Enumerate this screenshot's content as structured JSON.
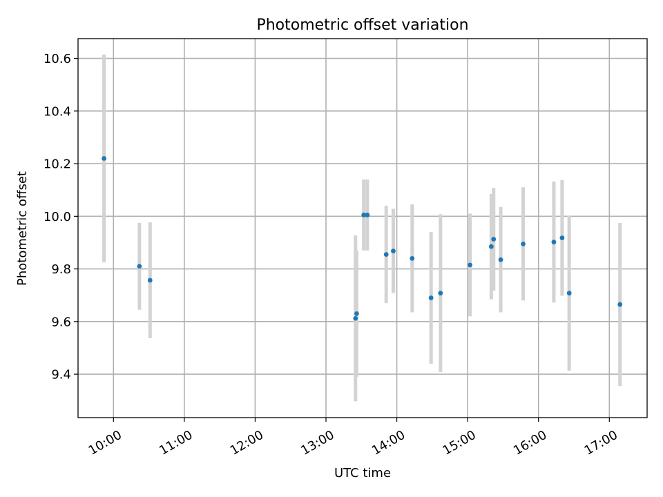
{
  "chart_data": {
    "type": "scatter",
    "title": "Photometric offset variation",
    "xlabel": "UTC time",
    "ylabel": "Photometric offset",
    "x_axis_type": "time",
    "xlim": [
      "09:30",
      "17:32"
    ],
    "ylim": [
      9.235,
      10.675
    ],
    "x_ticks": [
      "10:00",
      "11:00",
      "12:00",
      "13:00",
      "14:00",
      "15:00",
      "16:00",
      "17:00"
    ],
    "y_ticks": [
      9.4,
      9.6,
      9.8,
      10.0,
      10.2,
      10.4,
      10.6
    ],
    "y_tick_labels": [
      "9.4",
      "9.6",
      "9.8",
      "10.0",
      "10.2",
      "10.4",
      "10.6"
    ],
    "grid": true,
    "legend": "none",
    "colors": {
      "point": "#1f77b4",
      "errorbar": "#d3d3d3"
    },
    "points": [
      {
        "x": "09:52",
        "y": 10.22,
        "err": 0.395
      },
      {
        "x": "10:22",
        "y": 9.81,
        "err": 0.165
      },
      {
        "x": "10:31",
        "y": 9.757,
        "err": 0.22
      },
      {
        "x": "13:25",
        "y": 9.612,
        "err": 0.315
      },
      {
        "x": "13:26",
        "y": 9.63,
        "err": 0.24
      },
      {
        "x": "13:32",
        "y": 10.005,
        "err": 0.135
      },
      {
        "x": "13:35",
        "y": 10.005,
        "err": 0.135
      },
      {
        "x": "13:51",
        "y": 9.855,
        "err": 0.185
      },
      {
        "x": "13:57",
        "y": 9.868,
        "err": 0.16
      },
      {
        "x": "14:13",
        "y": 9.84,
        "err": 0.205
      },
      {
        "x": "14:29",
        "y": 9.69,
        "err": 0.25
      },
      {
        "x": "14:37",
        "y": 9.708,
        "err": 0.3
      },
      {
        "x": "15:02",
        "y": 9.815,
        "err": 0.195
      },
      {
        "x": "15:20",
        "y": 9.885,
        "err": 0.2
      },
      {
        "x": "15:22",
        "y": 9.913,
        "err": 0.195
      },
      {
        "x": "15:28",
        "y": 9.835,
        "err": 0.2
      },
      {
        "x": "15:47",
        "y": 9.895,
        "err": 0.215
      },
      {
        "x": "16:13",
        "y": 9.902,
        "err": 0.23
      },
      {
        "x": "16:20",
        "y": 9.918,
        "err": 0.22
      },
      {
        "x": "16:26",
        "y": 9.708,
        "err": 0.295
      },
      {
        "x": "17:09",
        "y": 9.665,
        "err": 0.31
      }
    ]
  }
}
